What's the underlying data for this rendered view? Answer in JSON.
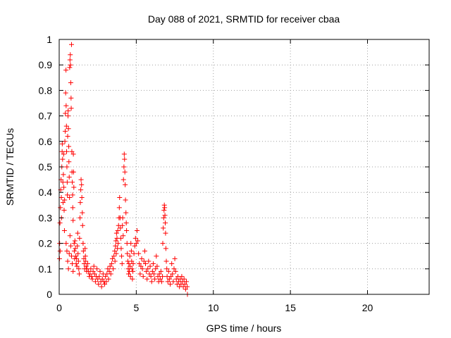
{
  "chart_data": {
    "type": "scatter",
    "title": "Day 088 of 2021, SRMTID for receiver cbaa",
    "xlabel": "GPS time / hours",
    "ylabel": "SRMTID / TECUs",
    "xlim": [
      0,
      24
    ],
    "ylim": [
      0,
      1
    ],
    "xticks": [
      "0",
      "5",
      "10",
      "15",
      "20"
    ],
    "xtick_values": [
      0,
      5,
      10,
      15,
      20
    ],
    "yticks": [
      "0",
      "0.1",
      "0.2",
      "0.3",
      "0.4",
      "0.5",
      "0.6",
      "0.7",
      "0.8",
      "0.9",
      "1"
    ],
    "ytick_values": [
      0,
      0.1,
      0.2,
      0.3,
      0.4,
      0.5,
      0.6,
      0.7,
      0.8,
      0.9,
      1
    ],
    "grid": true,
    "marker": "+",
    "color": "#ff0000",
    "series": [
      {
        "points": [
          [
            0.02,
            0.14
          ],
          [
            0.03,
            0.2
          ],
          [
            0.05,
            0.28
          ],
          [
            0.06,
            0.17
          ],
          [
            0.08,
            0.34
          ],
          [
            0.1,
            0.41
          ],
          [
            0.12,
            0.45
          ],
          [
            0.14,
            0.38
          ],
          [
            0.15,
            0.3
          ],
          [
            0.17,
            0.5
          ],
          [
            0.19,
            0.56
          ],
          [
            0.2,
            0.59
          ],
          [
            0.22,
            0.53
          ],
          [
            0.24,
            0.44
          ],
          [
            0.25,
            0.36
          ],
          [
            0.27,
            0.47
          ],
          [
            0.29,
            0.55
          ],
          [
            0.3,
            0.42
          ],
          [
            0.32,
            0.33
          ],
          [
            0.34,
            0.25
          ],
          [
            0.35,
            0.37
          ],
          [
            0.37,
            0.6
          ],
          [
            0.39,
            0.64
          ],
          [
            0.4,
            0.71
          ],
          [
            0.42,
            0.79
          ],
          [
            0.44,
            0.88
          ],
          [
            0.45,
            0.74
          ],
          [
            0.47,
            0.66
          ],
          [
            0.48,
            0.56
          ],
          [
            0.5,
            0.5
          ],
          [
            0.52,
            0.44
          ],
          [
            0.53,
            0.39
          ],
          [
            0.55,
            0.62
          ],
          [
            0.57,
            0.7
          ],
          [
            0.58,
            0.72
          ],
          [
            0.6,
            0.65
          ],
          [
            0.62,
            0.58
          ],
          [
            0.63,
            0.52
          ],
          [
            0.65,
            0.46
          ],
          [
            0.67,
            0.38
          ],
          [
            0.68,
            0.89
          ],
          [
            0.7,
            0.92
          ],
          [
            0.72,
            0.94
          ],
          [
            0.73,
            0.9
          ],
          [
            0.75,
            0.83
          ],
          [
            0.77,
            0.77
          ],
          [
            0.78,
            0.73
          ],
          [
            0.8,
            0.98
          ],
          [
            0.82,
            0.56
          ],
          [
            0.83,
            0.48
          ],
          [
            0.85,
            0.44
          ],
          [
            0.87,
            0.39
          ],
          [
            0.88,
            0.34
          ],
          [
            0.9,
            0.29
          ],
          [
            0.92,
            0.55
          ],
          [
            0.93,
            0.48
          ],
          [
            0.95,
            0.42
          ],
          [
            0.97,
            0.2
          ],
          [
            0.98,
            0.17
          ],
          [
            1.0,
            0.14
          ],
          [
            0.45,
            0.2
          ],
          [
            0.5,
            0.17
          ],
          [
            0.55,
            0.13
          ],
          [
            0.6,
            0.1
          ],
          [
            0.65,
            0.16
          ],
          [
            0.7,
            0.23
          ],
          [
            0.75,
            0.19
          ],
          [
            0.8,
            0.15
          ],
          [
            0.85,
            0.12
          ],
          [
            0.9,
            0.09
          ],
          [
            1.02,
            0.21
          ],
          [
            1.05,
            0.18
          ],
          [
            1.08,
            0.15
          ],
          [
            1.1,
            0.12
          ],
          [
            1.13,
            0.14
          ],
          [
            1.15,
            0.11
          ],
          [
            1.18,
            0.19
          ],
          [
            1.2,
            0.24
          ],
          [
            1.22,
            0.16
          ],
          [
            1.25,
            0.13
          ],
          [
            1.27,
            0.1
          ],
          [
            1.3,
            0.08
          ],
          [
            1.32,
            0.22
          ],
          [
            1.35,
            0.3
          ],
          [
            1.37,
            0.36
          ],
          [
            1.4,
            0.41
          ],
          [
            1.42,
            0.45
          ],
          [
            1.45,
            0.43
          ],
          [
            1.47,
            0.38
          ],
          [
            1.5,
            0.32
          ],
          [
            1.52,
            0.27
          ],
          [
            1.55,
            0.2
          ],
          [
            1.57,
            0.17
          ],
          [
            1.6,
            0.14
          ],
          [
            1.62,
            0.12
          ],
          [
            1.65,
            0.1
          ],
          [
            1.68,
            0.18
          ],
          [
            1.7,
            0.15
          ],
          [
            1.72,
            0.13
          ],
          [
            1.75,
            0.11
          ],
          [
            1.78,
            0.09
          ],
          [
            1.8,
            0.1
          ],
          [
            1.85,
            0.12
          ],
          [
            1.9,
            0.09
          ],
          [
            1.95,
            0.07
          ],
          [
            2.0,
            0.08
          ],
          [
            2.05,
            0.1
          ],
          [
            2.1,
            0.07
          ],
          [
            2.15,
            0.06
          ],
          [
            2.2,
            0.09
          ],
          [
            2.25,
            0.11
          ],
          [
            2.3,
            0.08
          ],
          [
            2.35,
            0.05
          ],
          [
            2.4,
            0.07
          ],
          [
            2.45,
            0.1
          ],
          [
            2.5,
            0.06
          ],
          [
            2.55,
            0.04
          ],
          [
            2.6,
            0.07
          ],
          [
            2.65,
            0.09
          ],
          [
            2.7,
            0.05
          ],
          [
            2.75,
            0.03
          ],
          [
            2.8,
            0.06
          ],
          [
            2.85,
            0.08
          ],
          [
            2.9,
            0.05
          ],
          [
            2.95,
            0.04
          ],
          [
            3.0,
            0.07
          ],
          [
            3.05,
            0.05
          ],
          [
            3.1,
            0.08
          ],
          [
            3.15,
            0.1
          ],
          [
            3.2,
            0.06
          ],
          [
            3.25,
            0.09
          ],
          [
            3.3,
            0.11
          ],
          [
            3.35,
            0.08
          ],
          [
            3.4,
            0.12
          ],
          [
            3.45,
            0.14
          ],
          [
            3.5,
            0.1
          ],
          [
            3.55,
            0.15
          ],
          [
            3.6,
            0.17
          ],
          [
            3.62,
            0.13
          ],
          [
            3.65,
            0.19
          ],
          [
            3.68,
            0.21
          ],
          [
            3.7,
            0.16
          ],
          [
            3.72,
            0.24
          ],
          [
            3.75,
            0.22
          ],
          [
            3.78,
            0.18
          ],
          [
            3.8,
            0.25
          ],
          [
            3.82,
            0.2
          ],
          [
            3.85,
            0.27
          ],
          [
            3.88,
            0.3
          ],
          [
            3.9,
            0.34
          ],
          [
            3.92,
            0.38
          ],
          [
            3.95,
            0.3
          ],
          [
            3.97,
            0.26
          ],
          [
            4.0,
            0.22
          ],
          [
            4.02,
            0.18
          ],
          [
            4.05,
            0.15
          ],
          [
            4.08,
            0.12
          ],
          [
            4.1,
            0.27
          ],
          [
            4.12,
            0.3
          ],
          [
            4.15,
            0.23
          ],
          [
            4.17,
            0.45
          ],
          [
            4.2,
            0.5
          ],
          [
            4.22,
            0.55
          ],
          [
            4.24,
            0.53
          ],
          [
            4.26,
            0.48
          ],
          [
            4.28,
            0.43
          ],
          [
            4.3,
            0.37
          ],
          [
            4.33,
            0.32
          ],
          [
            4.35,
            0.28
          ],
          [
            4.37,
            0.25
          ],
          [
            4.4,
            0.2
          ],
          [
            4.42,
            0.16
          ],
          [
            4.45,
            0.13
          ],
          [
            4.48,
            0.1
          ],
          [
            4.5,
            0.08
          ],
          [
            4.52,
            0.12
          ],
          [
            4.55,
            0.09
          ],
          [
            4.58,
            0.15
          ],
          [
            4.6,
            0.11
          ],
          [
            4.62,
            0.07
          ],
          [
            4.65,
            0.2
          ],
          [
            4.68,
            0.17
          ],
          [
            4.7,
            0.13
          ],
          [
            4.72,
            0.1
          ],
          [
            4.75,
            0.06
          ],
          [
            4.78,
            0.09
          ],
          [
            4.8,
            0.12
          ],
          [
            4.85,
            0.16
          ],
          [
            4.9,
            0.19
          ],
          [
            4.95,
            0.22
          ],
          [
            5.0,
            0.2
          ],
          [
            5.05,
            0.25
          ],
          [
            5.1,
            0.21
          ],
          [
            5.15,
            0.16
          ],
          [
            5.2,
            0.12
          ],
          [
            5.25,
            0.08
          ],
          [
            5.3,
            0.11
          ],
          [
            5.35,
            0.14
          ],
          [
            5.4,
            0.1
          ],
          [
            5.45,
            0.07
          ],
          [
            5.5,
            0.13
          ],
          [
            5.55,
            0.17
          ],
          [
            5.6,
            0.12
          ],
          [
            5.65,
            0.09
          ],
          [
            5.7,
            0.06
          ],
          [
            5.75,
            0.1
          ],
          [
            5.8,
            0.13
          ],
          [
            5.85,
            0.08
          ],
          [
            5.9,
            0.11
          ],
          [
            5.95,
            0.07
          ],
          [
            6.0,
            0.05
          ],
          [
            6.05,
            0.09
          ],
          [
            6.1,
            0.12
          ],
          [
            6.15,
            0.08
          ],
          [
            6.2,
            0.06
          ],
          [
            6.25,
            0.1
          ],
          [
            6.3,
            0.15
          ],
          [
            6.35,
            0.11
          ],
          [
            6.4,
            0.07
          ],
          [
            6.45,
            0.05
          ],
          [
            6.5,
            0.08
          ],
          [
            6.55,
            0.06
          ],
          [
            6.6,
            0.09
          ],
          [
            6.65,
            0.05
          ],
          [
            6.7,
            0.07
          ],
          [
            6.72,
            0.2
          ],
          [
            6.75,
            0.26
          ],
          [
            6.78,
            0.3
          ],
          [
            6.8,
            0.33
          ],
          [
            6.82,
            0.35
          ],
          [
            6.84,
            0.34
          ],
          [
            6.86,
            0.31
          ],
          [
            6.88,
            0.28
          ],
          [
            6.9,
            0.24
          ],
          [
            6.92,
            0.18
          ],
          [
            6.95,
            0.13
          ],
          [
            6.98,
            0.1
          ],
          [
            7.0,
            0.07
          ],
          [
            7.05,
            0.05
          ],
          [
            7.1,
            0.09
          ],
          [
            7.15,
            0.06
          ],
          [
            7.2,
            0.04
          ],
          [
            7.25,
            0.07
          ],
          [
            7.3,
            0.12
          ],
          [
            7.35,
            0.08
          ],
          [
            7.4,
            0.05
          ],
          [
            7.45,
            0.1
          ],
          [
            7.5,
            0.14
          ],
          [
            7.55,
            0.09
          ],
          [
            7.6,
            0.06
          ],
          [
            7.65,
            0.04
          ],
          [
            7.7,
            0.07
          ],
          [
            7.75,
            0.05
          ],
          [
            7.8,
            0.03
          ],
          [
            7.85,
            0.06
          ],
          [
            7.9,
            0.04
          ],
          [
            7.95,
            0.07
          ],
          [
            8.0,
            0.05
          ],
          [
            8.05,
            0.03
          ],
          [
            8.1,
            0.06
          ],
          [
            8.15,
            0.04
          ],
          [
            8.2,
            0.02
          ],
          [
            8.25,
            0.05
          ],
          [
            8.3,
            0.03
          ],
          [
            8.32,
            0.0
          ]
        ]
      }
    ]
  }
}
